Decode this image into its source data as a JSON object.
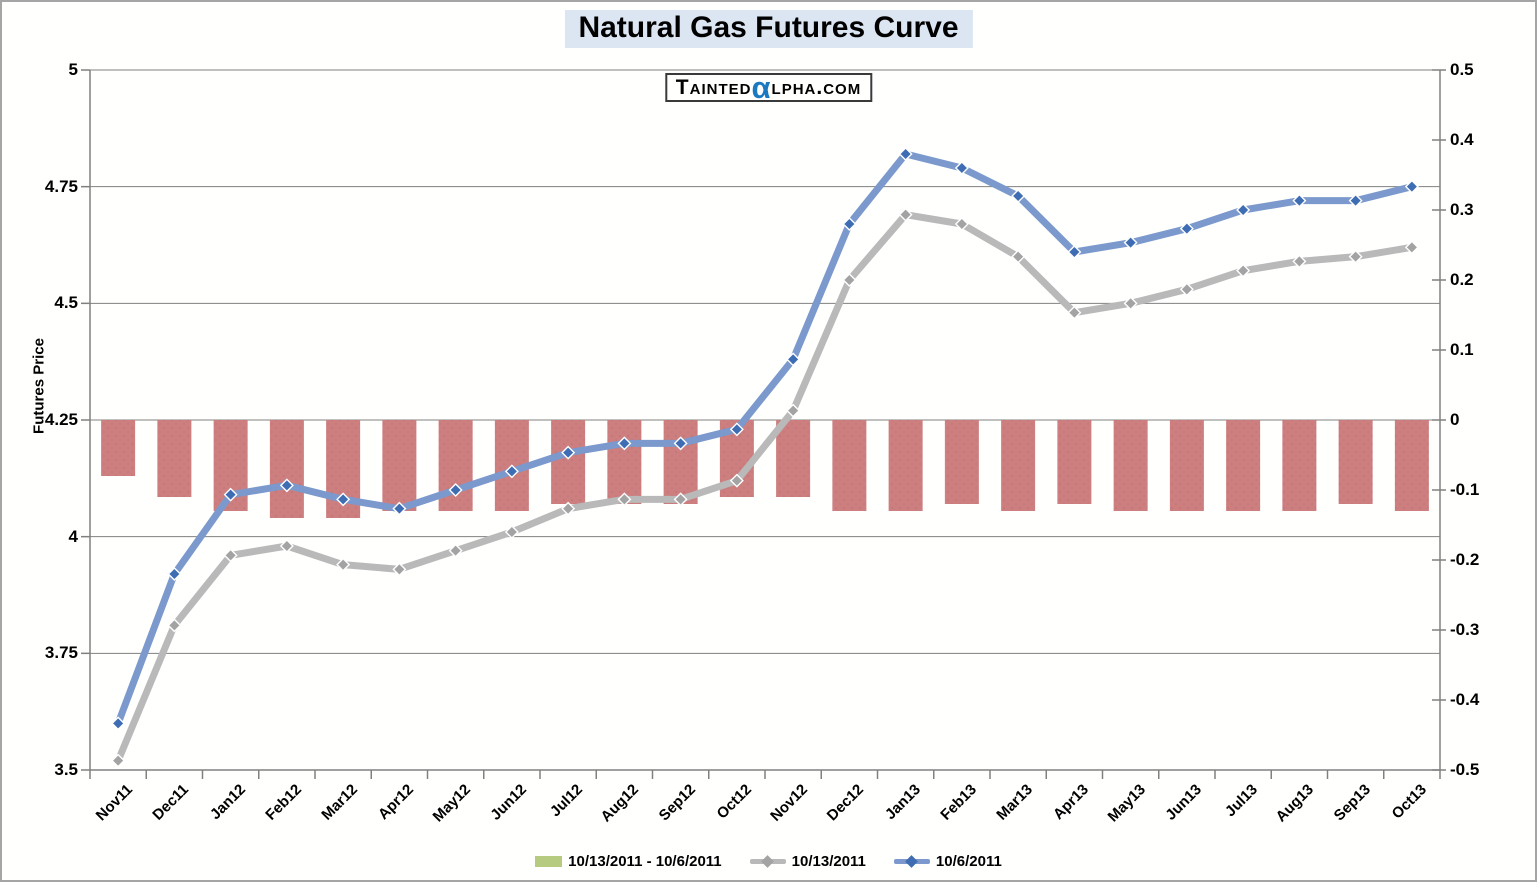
{
  "title": "Natural Gas Futures Curve",
  "logo": {
    "prefix": "Tainted",
    "alpha": "α",
    "suffix": "lpha.com"
  },
  "colors": {
    "title_bg": "#dce6f2",
    "bar_fill": "#cd7e7f",
    "bar_dot": "#b2686d",
    "blue_line": "#7b99cc",
    "blue_marker": "#3f6db3",
    "gray_line": "#b9b9b9",
    "gray_marker": "#a3a3a3",
    "legend_green": "#b7cb80",
    "grid": "#808080"
  },
  "chart_data": {
    "type": "combo-bar-line",
    "title": "Natural Gas Futures Curve",
    "categories": [
      "Nov11",
      "Dec11",
      "Jan12",
      "Feb12",
      "Mar12",
      "Apr12",
      "May12",
      "Jun12",
      "Jul12",
      "Aug12",
      "Sep12",
      "Oct12",
      "Nov12",
      "Dec12",
      "Jan13",
      "Feb13",
      "Mar13",
      "Apr13",
      "May13",
      "Jun13",
      "Jul13",
      "Aug13",
      "Sep13",
      "Oct13"
    ],
    "series": [
      {
        "name": "10/13/2011 - 10/6/2011",
        "type": "bar",
        "axis": "right",
        "values": [
          -0.08,
          -0.11,
          -0.13,
          -0.14,
          -0.14,
          -0.13,
          -0.13,
          -0.13,
          -0.12,
          -0.12,
          -0.12,
          -0.11,
          -0.11,
          -0.13,
          -0.13,
          -0.12,
          -0.13,
          -0.12,
          -0.13,
          -0.13,
          -0.13,
          -0.13,
          -0.12,
          -0.13
        ]
      },
      {
        "name": "10/13/2011",
        "type": "line",
        "axis": "left",
        "values": [
          3.52,
          3.81,
          3.96,
          3.98,
          3.94,
          3.93,
          3.97,
          4.01,
          4.06,
          4.08,
          4.08,
          4.12,
          4.27,
          4.55,
          4.69,
          4.67,
          4.6,
          4.48,
          4.5,
          4.53,
          4.57,
          4.59,
          4.6,
          4.62
        ]
      },
      {
        "name": "10/6/2011",
        "type": "line",
        "axis": "left",
        "values": [
          3.6,
          3.92,
          4.09,
          4.11,
          4.08,
          4.06,
          4.1,
          4.14,
          4.18,
          4.2,
          4.2,
          4.23,
          4.38,
          4.67,
          4.82,
          4.79,
          4.73,
          4.61,
          4.63,
          4.66,
          4.7,
          4.72,
          4.72,
          4.75
        ]
      }
    ],
    "left_axis": {
      "label": "Futures Price",
      "min": 3.5,
      "max": 5,
      "step": 0.25,
      "ticks": [
        "5",
        "4.75",
        "4.5",
        "4.25",
        "4",
        "3.75",
        "3.5"
      ]
    },
    "right_axis": {
      "min": -0.5,
      "max": 0.5,
      "step": 0.1,
      "ticks": [
        "0.5",
        "0.4",
        "0.3",
        "0.2",
        "0.1",
        "0",
        "-0.1",
        "-0.2",
        "-0.3",
        "-0.4",
        "-0.5"
      ]
    },
    "grid": true,
    "legend_position": "bottom"
  }
}
